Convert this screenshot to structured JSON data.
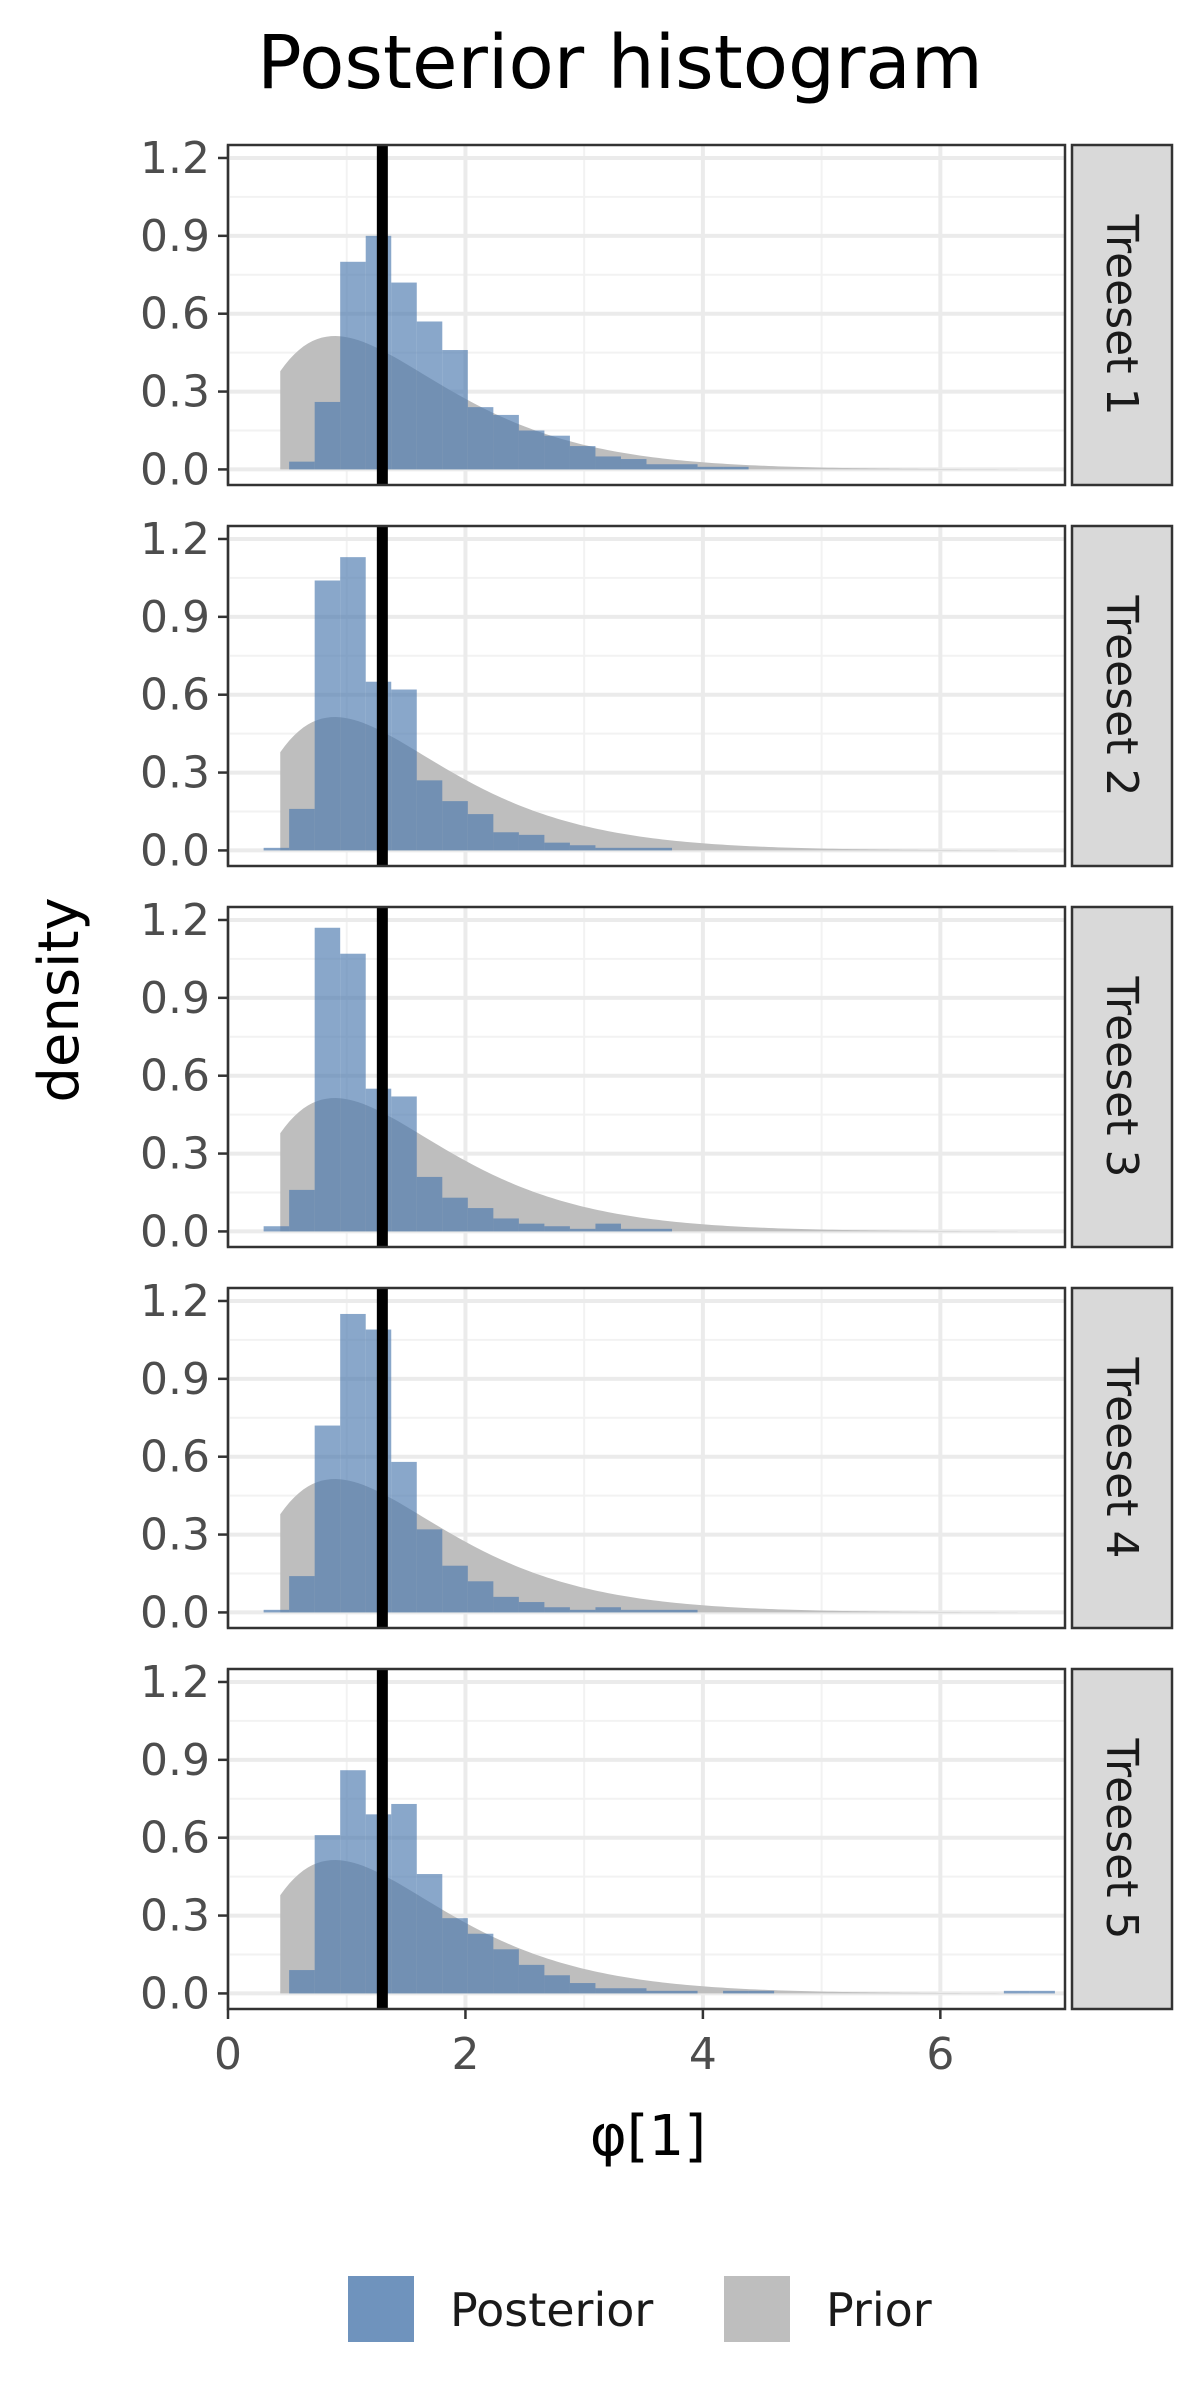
{
  "chart_data": {
    "type": "histogram",
    "title": "Posterior histogram",
    "xlabel": "φ[1]",
    "ylabel": "density",
    "xlim": [
      0,
      7.05
    ],
    "ylim": [
      -0.06,
      1.25
    ],
    "x_ticks": [
      "0",
      "2",
      "4",
      "6"
    ],
    "x_tick_values": [
      0,
      2,
      4,
      6
    ],
    "y_ticks": [
      "0.0",
      "0.3",
      "0.6",
      "0.9",
      "1.2"
    ],
    "y_tick_values": [
      0,
      0.3,
      0.6,
      0.9,
      1.2
    ],
    "reference_line_x": 1.3,
    "bin_start": 0.3,
    "bin_width": 0.215,
    "prior": {
      "name": "Prior",
      "shape": 2.5,
      "scale": 0.6,
      "x_range": [
        0.44,
        6.65
      ]
    },
    "panels": [
      {
        "label": "Treeset 1",
        "posterior": [
          0,
          0.03,
          0.26,
          0.8,
          0.9,
          0.72,
          0.57,
          0.46,
          0.24,
          0.21,
          0.15,
          0.13,
          0.09,
          0.05,
          0.04,
          0.02,
          0.02,
          0.01,
          0.01
        ]
      },
      {
        "label": "Treeset 2",
        "posterior": [
          0.01,
          0.16,
          1.04,
          1.13,
          0.65,
          0.62,
          0.27,
          0.19,
          0.14,
          0.07,
          0.06,
          0.03,
          0.02,
          0.01,
          0.01,
          0.01
        ]
      },
      {
        "label": "Treeset 3",
        "posterior": [
          0.02,
          0.16,
          1.17,
          1.07,
          0.55,
          0.52,
          0.21,
          0.13,
          0.09,
          0.05,
          0.03,
          0.02,
          0.01,
          0.03,
          0.01,
          0.01
        ]
      },
      {
        "label": "Treeset 4",
        "posterior": [
          0.01,
          0.14,
          0.72,
          1.15,
          1.09,
          0.58,
          0.32,
          0.18,
          0.12,
          0.06,
          0.04,
          0.02,
          0.01,
          0.02,
          0.01,
          0.01,
          0.01
        ]
      },
      {
        "label": "Treeset 5",
        "posterior": [
          0,
          0.09,
          0.61,
          0.86,
          0.69,
          0.73,
          0.46,
          0.29,
          0.23,
          0.17,
          0.11,
          0.07,
          0.04,
          0.02,
          0.02,
          0.01,
          0.01,
          0,
          0.01,
          0.01,
          0,
          0,
          0,
          0,
          0,
          0,
          0,
          0,
          0,
          0.01,
          0.01
        ]
      }
    ],
    "legend": [
      {
        "name": "Posterior",
        "color": "#6f93bd"
      },
      {
        "name": "Prior",
        "color": "#bebebe"
      }
    ],
    "legend_position": "bottom",
    "grid": true
  }
}
